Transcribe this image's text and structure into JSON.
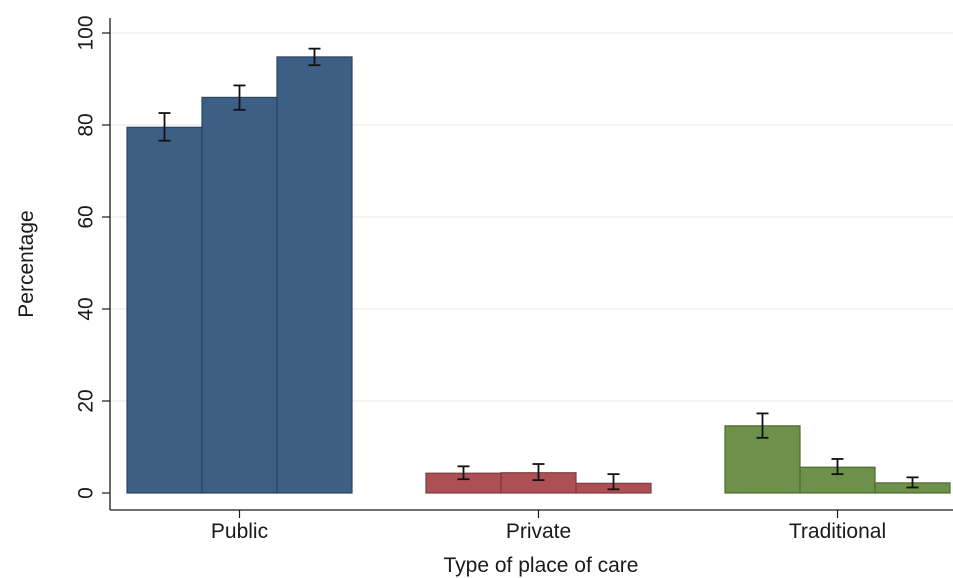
{
  "chart_data": {
    "type": "bar",
    "title": "",
    "xlabel": "Type of place of care",
    "ylabel": "Percentage",
    "ylim": [
      0,
      100
    ],
    "yticks": [
      0,
      20,
      40,
      60,
      80,
      100
    ],
    "grid": true,
    "legend": "none",
    "categories": [
      "Public",
      "Private",
      "Traditional"
    ],
    "category_colors": [
      "#3d5f86",
      "#ad5056",
      "#6e9149"
    ],
    "bars_per_category": 3,
    "values": [
      [
        79.5,
        86.0,
        94.8
      ],
      [
        4.3,
        4.4,
        2.1
      ],
      [
        14.6,
        5.6,
        2.2
      ]
    ],
    "error_low": [
      [
        76.6,
        83.3,
        93.0
      ],
      [
        3.0,
        2.8,
        0.8
      ],
      [
        12.0,
        4.1,
        1.2
      ]
    ],
    "error_high": [
      [
        82.6,
        88.6,
        96.6
      ],
      [
        5.8,
        6.3,
        4.1
      ],
      [
        17.3,
        7.4,
        3.4
      ]
    ]
  }
}
